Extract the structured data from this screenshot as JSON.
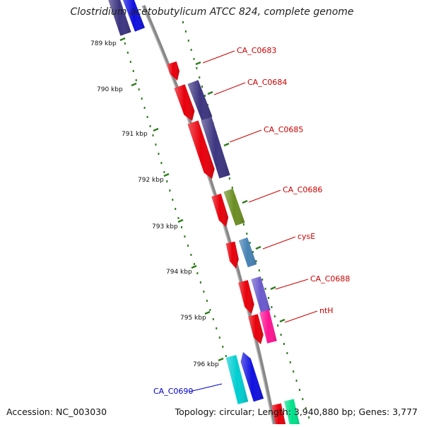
{
  "title": "Clostridium acetobutylicum ATCC 824, complete genome",
  "footer": {
    "accession": "Accession: NC_003030",
    "topology": "Topology: circular; Length: 3,940,880 bp; Genes: 3,777"
  },
  "ruler": [
    {
      "label": "789 kbp",
      "kbp": 789
    },
    {
      "label": "790 kbp",
      "kbp": 790
    },
    {
      "label": "791 kbp",
      "kbp": 791
    },
    {
      "label": "792 kbp",
      "kbp": 792
    },
    {
      "label": "793 kbp",
      "kbp": 793
    },
    {
      "label": "794 kbp",
      "kbp": 794
    },
    {
      "label": "795 kbp",
      "kbp": 795
    },
    {
      "label": "796 kbp",
      "kbp": 796
    }
  ],
  "genes": [
    {
      "label": "CA_C0683",
      "strand": "+",
      "color": "#e8000b",
      "label_color": "#cc0000"
    },
    {
      "label": "CA_C0684",
      "strand": "+",
      "color": "#3d3580",
      "label_color": "#cc0000"
    },
    {
      "label": "CA_C0685",
      "strand": "+",
      "color": "#3d3580",
      "label_color": "#cc0000"
    },
    {
      "label": "CA_C0686",
      "strand": "+",
      "color": "#6b8e23",
      "label_color": "#cc0000"
    },
    {
      "label": "cysE",
      "strand": "+",
      "color": "#4682b4",
      "label_color": "#cc0000"
    },
    {
      "label": "CA_C0688",
      "strand": "+",
      "color": "#6a5acd",
      "label_color": "#cc0000"
    },
    {
      "label": "ntH",
      "strand": "+",
      "color": "#ff1493",
      "label_color": "#cc0000"
    },
    {
      "label": "CA_C0690",
      "strand": "-",
      "color": "#00ced1",
      "label_color": "#0000cc"
    }
  ],
  "colors": {
    "cog_red": "#e8000b",
    "backbone": "#888888",
    "tick_green": "#2e7d1e",
    "blue_gene": "#1010e0",
    "spring_green": "#00e08a"
  }
}
